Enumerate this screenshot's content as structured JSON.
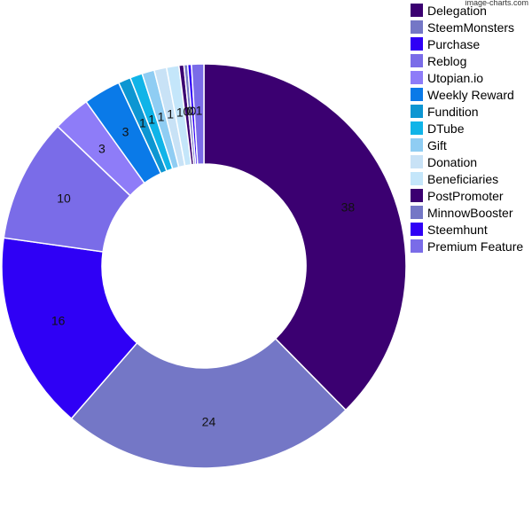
{
  "watermark": "image-charts.com",
  "chart_data": {
    "type": "pie",
    "style": "donut",
    "legend_position": "right",
    "categories": [
      "Delegation",
      "SteemMonsters",
      "Purchase",
      "Reblog",
      "Utopian.io",
      "Weekly Reward",
      "Fundition",
      "DTube",
      "Gift",
      "Donation",
      "Beneficiaries",
      "PostPromoter",
      "MinnowBooster",
      "Steemhunt",
      "Premium Feature"
    ],
    "values": [
      38,
      24,
      16,
      10,
      3,
      3,
      1,
      1,
      1,
      1,
      1,
      0.4,
      0.3,
      0.3,
      1
    ],
    "labels": [
      "38",
      "24",
      "16",
      "10",
      "3",
      "3",
      "1",
      "1",
      "1",
      "1",
      "1",
      "0",
      "0",
      "0",
      "1"
    ],
    "colors": [
      "#3b0071",
      "#7477c6",
      "#2f00f5",
      "#7a6ce8",
      "#8e7cf8",
      "#0a7ae8",
      "#0d96d2",
      "#10b4e8",
      "#8fcdf3",
      "#c8e2f6",
      "#c4e6fa",
      "#3b0071",
      "#7477c6",
      "#2f00f5",
      "#7a6ce8"
    ]
  }
}
